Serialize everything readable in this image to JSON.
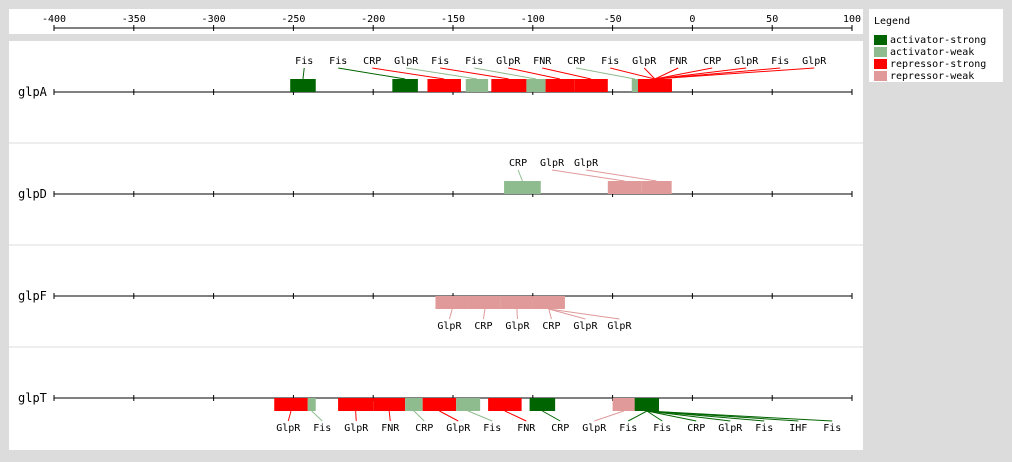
{
  "colors": {
    "activator-strong": "#006400",
    "activator-weak": "#8fbc8f",
    "repressor-strong": "#ff0000",
    "repressor-weak": "#e09a9a",
    "page_bg": "#dcdcdc",
    "panel_bg": "#ffffff"
  },
  "legend": {
    "title": "Legend",
    "items": [
      {
        "label": "activator-strong",
        "color_key": "activator-strong"
      },
      {
        "label": "activator-weak",
        "color_key": "activator-weak"
      },
      {
        "label": "repressor-strong",
        "color_key": "repressor-strong"
      },
      {
        "label": "repressor-weak",
        "color_key": "repressor-weak"
      }
    ]
  },
  "axis": {
    "min": -400,
    "max": 100,
    "ticks": [
      -400,
      -350,
      -300,
      -250,
      -200,
      -150,
      -100,
      -50,
      0,
      50,
      100
    ],
    "tick_labels": [
      "-400",
      "-350",
      "-300",
      "-250",
      "-200",
      "-150",
      "-100",
      "-50",
      "0",
      "50",
      "100"
    ]
  },
  "genes": [
    {
      "name": "glpA",
      "label_side": "above",
      "sites": [
        {
          "label": "Fis",
          "start": -252,
          "end": -236,
          "type": "activator-strong"
        },
        {
          "label": "Fis",
          "start": -188,
          "end": -172,
          "type": "activator-strong"
        },
        {
          "label": "CRP",
          "start": -166,
          "end": -145,
          "type": "repressor-strong"
        },
        {
          "label": "GlpR",
          "start": -142,
          "end": -128,
          "type": "activator-weak"
        },
        {
          "label": "Fis",
          "start": -126,
          "end": -104,
          "type": "repressor-strong"
        },
        {
          "label": "Fis",
          "start": -104,
          "end": -92,
          "type": "activator-weak"
        },
        {
          "label": "GlpR",
          "start": -92,
          "end": -74,
          "type": "repressor-strong"
        },
        {
          "label": "FNR",
          "start": -74,
          "end": -53,
          "type": "repressor-strong"
        },
        {
          "label": "CRP",
          "start": -38,
          "end": -34,
          "type": "activator-weak"
        },
        {
          "label": "Fis",
          "start": -34,
          "end": -13,
          "type": "repressor-strong"
        },
        {
          "label": "GlpR",
          "start": -34,
          "end": -13,
          "type": "repressor-strong"
        },
        {
          "label": "FNR",
          "start": -34,
          "end": -13,
          "type": "repressor-strong"
        },
        {
          "label": "CRP",
          "start": -34,
          "end": -13,
          "type": "repressor-strong"
        },
        {
          "label": "GlpR",
          "start": -34,
          "end": -13,
          "type": "repressor-strong"
        },
        {
          "label": "Fis",
          "start": -34,
          "end": -13,
          "type": "repressor-strong"
        },
        {
          "label": "GlpR",
          "start": -34,
          "end": -13,
          "type": "repressor-strong"
        }
      ]
    },
    {
      "name": "glpD",
      "label_side": "above",
      "sites": [
        {
          "label": "CRP",
          "start": -118,
          "end": -95,
          "type": "activator-weak"
        },
        {
          "label": "GlpR",
          "start": -53,
          "end": -32,
          "type": "repressor-weak"
        },
        {
          "label": "GlpR",
          "start": -32,
          "end": -13,
          "type": "repressor-weak"
        }
      ]
    },
    {
      "name": "glpF",
      "label_side": "below",
      "sites": [
        {
          "label": "GlpR",
          "start": -161,
          "end": -140,
          "type": "repressor-weak"
        },
        {
          "label": "CRP",
          "start": -140,
          "end": -120,
          "type": "repressor-weak"
        },
        {
          "label": "GlpR",
          "start": -120,
          "end": -100,
          "type": "repressor-weak"
        },
        {
          "label": "CRP",
          "start": -100,
          "end": -80,
          "type": "repressor-weak"
        },
        {
          "label": "GlpR",
          "start": -100,
          "end": -80,
          "type": "repressor-weak"
        },
        {
          "label": "GlpR",
          "start": -100,
          "end": -80,
          "type": "repressor-weak"
        }
      ]
    },
    {
      "name": "glpT",
      "label_side": "below",
      "sites": [
        {
          "label": "GlpR",
          "start": -262,
          "end": -241,
          "type": "repressor-strong"
        },
        {
          "label": "Fis",
          "start": -241,
          "end": -236,
          "type": "activator-weak"
        },
        {
          "label": "GlpR",
          "start": -222,
          "end": -200,
          "type": "repressor-strong"
        },
        {
          "label": "FNR",
          "start": -200,
          "end": -180,
          "type": "repressor-strong"
        },
        {
          "label": "CRP",
          "start": -180,
          "end": -169,
          "type": "activator-weak"
        },
        {
          "label": "GlpR",
          "start": -169,
          "end": -148,
          "type": "repressor-strong"
        },
        {
          "label": "Fis",
          "start": -148,
          "end": -133,
          "type": "activator-weak"
        },
        {
          "label": "FNR",
          "start": -128,
          "end": -107,
          "type": "repressor-strong"
        },
        {
          "label": "CRP",
          "start": -102,
          "end": -86,
          "type": "activator-strong"
        },
        {
          "label": "GlpR",
          "start": -50,
          "end": -36,
          "type": "repressor-weak"
        },
        {
          "label": "Fis",
          "start": -36,
          "end": -21,
          "type": "activator-strong"
        },
        {
          "label": "Fis",
          "start": -36,
          "end": -21,
          "type": "activator-strong"
        },
        {
          "label": "CRP",
          "start": -36,
          "end": -21,
          "type": "activator-strong"
        },
        {
          "label": "GlpR",
          "start": -36,
          "end": -21,
          "type": "activator-strong"
        },
        {
          "label": "Fis",
          "start": -36,
          "end": -21,
          "type": "activator-strong"
        },
        {
          "label": "IHF",
          "start": -36,
          "end": -21,
          "type": "activator-strong"
        },
        {
          "label": "Fis",
          "start": -36,
          "end": -21,
          "type": "activator-strong"
        }
      ]
    }
  ]
}
